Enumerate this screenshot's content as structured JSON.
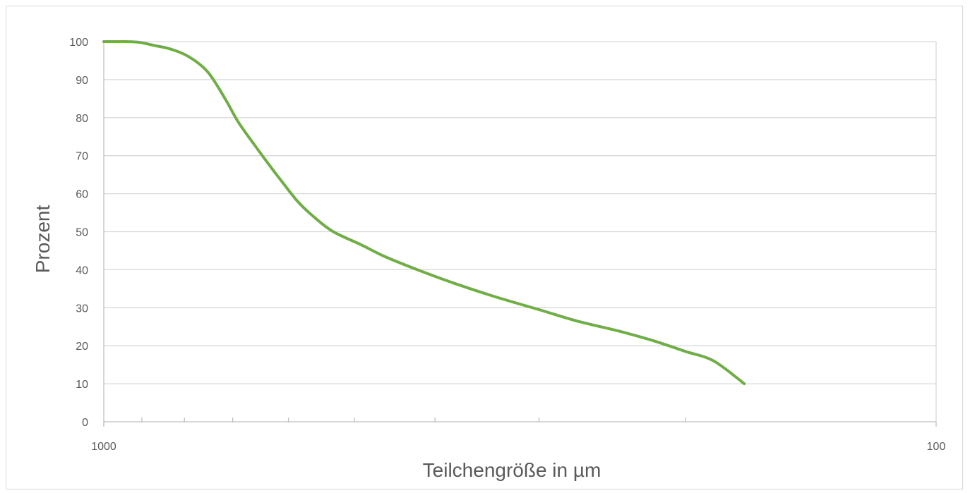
{
  "chart_data": {
    "type": "line",
    "title": "",
    "xlabel": "Teilchengröße in µm",
    "ylabel": "Prozent",
    "x_scale": "log",
    "x_reversed": true,
    "xlim": [
      1000,
      100
    ],
    "ylim": [
      0,
      100
    ],
    "y_ticks": [
      0,
      10,
      20,
      30,
      40,
      50,
      60,
      70,
      80,
      90,
      100
    ],
    "x_tick_labels": [
      1000,
      100
    ],
    "x_minor_ticks": [
      900,
      800,
      700,
      600,
      500,
      400,
      300,
      200
    ],
    "grid": true,
    "legend": "none",
    "colors": {
      "series": "#70ad47",
      "grid": "#d9d9d9",
      "axis": "#bfbfbf",
      "text": "#595959"
    },
    "series": [
      {
        "x": [
          1000,
          985,
          965,
          940,
          905,
          870,
          830,
          790,
          750,
          715,
          690,
          660,
          630,
          610,
          585,
          560,
          530,
          490,
          460,
          420,
          380,
          340,
          300,
          270,
          240,
          220,
          200,
          185,
          170
        ],
        "values": [
          100,
          100,
          100,
          100,
          99.8,
          99,
          98,
          96,
          92,
          85,
          79,
          73,
          67,
          63,
          58,
          54,
          50,
          46.5,
          43.5,
          40,
          36.5,
          33,
          29.5,
          26.5,
          23.8,
          21.5,
          18.5,
          16,
          10
        ]
      }
    ]
  }
}
